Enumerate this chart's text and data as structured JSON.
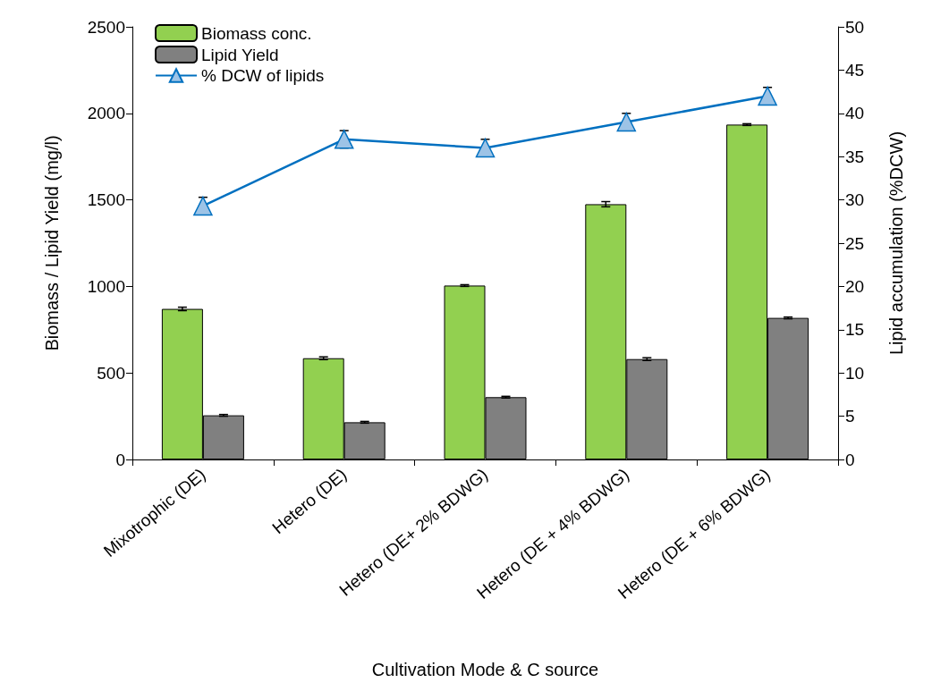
{
  "chart_data": {
    "type": "bar",
    "xlabel": "Cultivation Mode & C source",
    "ylabel": "Biomass / Lipid Yield (mg/l)",
    "y2label": "Lipid accumulation (%DCW)",
    "categories": [
      "Mixotrophic (DE)",
      "Hetero (DE)",
      "Hetero (DE+ 2% BDWG)",
      "Hetero (DE + 4% BDWG)",
      "Hetero (DE + 6% BDWG)"
    ],
    "series": [
      {
        "name": "Biomass conc.",
        "color": "#92d050",
        "values": [
          870,
          585,
          1005,
          1475,
          1935
        ],
        "errors": [
          10,
          8,
          5,
          15,
          5
        ]
      },
      {
        "name": "Lipid Yield",
        "color": "#808080",
        "values": [
          255,
          215,
          360,
          580,
          818
        ],
        "errors": [
          5,
          5,
          5,
          8,
          5
        ]
      },
      {
        "name": "% DCW of lipids",
        "type": "line",
        "axis": "y2",
        "color": "#0070c0",
        "marker": "triangle",
        "values": [
          29.3,
          37,
          36,
          39,
          42
        ],
        "errors": [
          1,
          1,
          1,
          1,
          1
        ]
      }
    ],
    "ylim": [
      0,
      2500
    ],
    "yticks": [
      0,
      500,
      1000,
      1500,
      2000,
      2500
    ],
    "y2lim": [
      0,
      50
    ],
    "y2ticks": [
      0,
      5,
      10,
      15,
      20,
      25,
      30,
      35,
      40,
      45,
      50
    ],
    "grid": false,
    "legend": "top left"
  }
}
